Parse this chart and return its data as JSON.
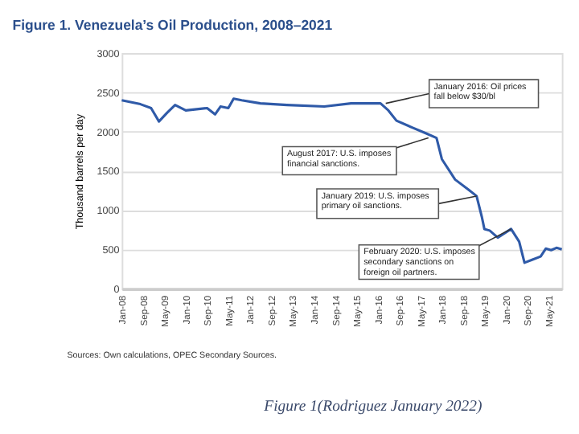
{
  "chart_data": {
    "type": "line",
    "title": "Figure 1. Venezuela’s Oil Production, 2008–2021",
    "ylabel": "Thousand barrels per day",
    "x": [
      "2008-01",
      "2008-08",
      "2008-12",
      "2009-03",
      "2009-06",
      "2009-09",
      "2010-01",
      "2010-09",
      "2010-12",
      "2011-02",
      "2011-05",
      "2011-07",
      "2011-10",
      "2012-05",
      "2013-03",
      "2014-05",
      "2015-03",
      "2016-02",
      "2016-05",
      "2016-08",
      "2017-02",
      "2017-07",
      "2017-11",
      "2018-01",
      "2018-06",
      "2018-11",
      "2019-02",
      "2019-04",
      "2019-05",
      "2019-07",
      "2019-10",
      "2020-03",
      "2020-06",
      "2020-08",
      "2020-11",
      "2021-02",
      "2021-04",
      "2021-06",
      "2021-08",
      "2021-10"
    ],
    "series": [
      {
        "color": "#2f5aa8",
        "values": [
          2400,
          2350,
          2300,
          2130,
          2240,
          2340,
          2270,
          2300,
          2220,
          2320,
          2300,
          2420,
          2400,
          2360,
          2340,
          2320,
          2360,
          2360,
          2270,
          2140,
          2050,
          1980,
          1920,
          1650,
          1390,
          1260,
          1180,
          920,
          760,
          740,
          650,
          760,
          600,
          330,
          370,
          410,
          510,
          490,
          520,
          500
        ]
      }
    ],
    "ylim": [
      0,
      3000
    ],
    "yticks": [
      0,
      500,
      1000,
      1500,
      2000,
      2500,
      3000
    ],
    "xlim": [
      "2008-01",
      "2021-10"
    ],
    "xticks": [
      {
        "value": "2008-01",
        "label": "Jan-08"
      },
      {
        "value": "2008-09",
        "label": "Sep-08"
      },
      {
        "value": "2009-05",
        "label": "May-09"
      },
      {
        "value": "2010-01",
        "label": "Jan-10"
      },
      {
        "value": "2010-09",
        "label": "Sep-10"
      },
      {
        "value": "2011-05",
        "label": "May-11"
      },
      {
        "value": "2012-01",
        "label": "Jan-12"
      },
      {
        "value": "2012-09",
        "label": "Sep-12"
      },
      {
        "value": "2013-05",
        "label": "May-13"
      },
      {
        "value": "2014-01",
        "label": "Jan-14"
      },
      {
        "value": "2014-09",
        "label": "Sep-14"
      },
      {
        "value": "2015-05",
        "label": "May-15"
      },
      {
        "value": "2016-01",
        "label": "Jan-16"
      },
      {
        "value": "2016-09",
        "label": "Sep-16"
      },
      {
        "value": "2017-05",
        "label": "May-17"
      },
      {
        "value": "2018-01",
        "label": "Jan-18"
      },
      {
        "value": "2018-09",
        "label": "Sep-18"
      },
      {
        "value": "2019-05",
        "label": "May-19"
      },
      {
        "value": "2020-01",
        "label": "Jan-20"
      },
      {
        "value": "2020-09",
        "label": "Sep-20"
      },
      {
        "value": "2021-05",
        "label": "May-21"
      }
    ],
    "grid": "y",
    "annotations": [
      {
        "text": "January 2016: Oil prices fall below $30/bl",
        "x": "2016-04",
        "y": 2360
      },
      {
        "text": "August 2017: U.S. imposes financial sanctions.",
        "x": "2017-08",
        "y": 1920
      },
      {
        "text": "January 2019: U.S. imposes primary oil sanctions.",
        "x": "2019-02",
        "y": 1180
      },
      {
        "text": "February 2020: U.S. imposes secondary sanctions on foreign oil partners.",
        "x": "2020-03",
        "y": 760
      },
      "Sources: Own calculations, OPEC Secondary Sources.",
      "Figure 1(Rodriguez January 2022)"
    ]
  }
}
